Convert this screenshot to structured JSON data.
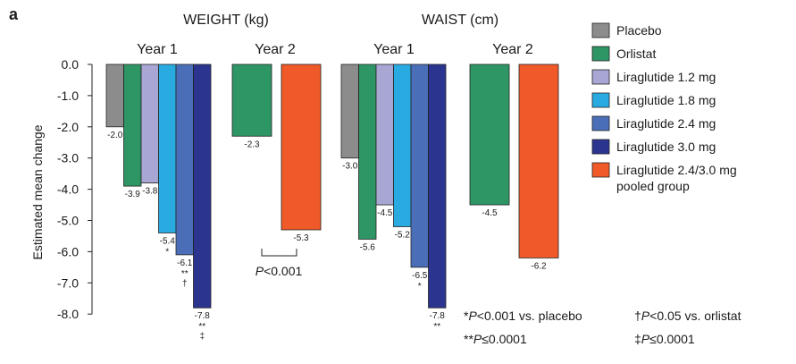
{
  "panel_label": "a",
  "chart_data": {
    "type": "bar",
    "ylabel": "Estimated mean change",
    "ylim": [
      -8.0,
      0.0
    ],
    "yticks": [
      "0.0",
      "-1.0",
      "-2.0",
      "-3.0",
      "-4.0",
      "-5.0",
      "-6.0",
      "-7.0",
      "-8.0"
    ],
    "groups": [
      {
        "title": "WEIGHT (kg)",
        "subgroups": [
          {
            "label": "Year 1",
            "bars": [
              {
                "series": "Placebo",
                "value": -2.0,
                "label": "-2.0",
                "marks": []
              },
              {
                "series": "Orlistat",
                "value": -3.9,
                "label": "-3.9",
                "marks": []
              },
              {
                "series": "Liraglutide 1.2 mg",
                "value": -3.8,
                "label": "-3.8",
                "marks": []
              },
              {
                "series": "Liraglutide 1.8 mg",
                "value": -5.4,
                "label": "-5.4",
                "marks": [
                  "*"
                ]
              },
              {
                "series": "Liraglutide 2.4 mg",
                "value": -6.1,
                "label": "-6.1",
                "marks": [
                  "**",
                  "†"
                ]
              },
              {
                "series": "Liraglutide 3.0 mg",
                "value": -7.8,
                "label": "-7.8",
                "marks": [
                  "**",
                  "‡"
                ]
              }
            ]
          },
          {
            "label": "Year 2",
            "bars": [
              {
                "series": "Orlistat",
                "value": -2.3,
                "label": "-2.3",
                "marks": []
              },
              {
                "series": "Liraglutide 2.4/3.0 mg pooled group",
                "value": -5.3,
                "label": "-5.3",
                "marks": []
              }
            ],
            "comparison": {
              "text": "P < 0.001",
              "p": "P",
              "rest": "<0.001"
            }
          }
        ]
      },
      {
        "title": "WAIST (cm)",
        "subgroups": [
          {
            "label": "Year 1",
            "bars": [
              {
                "series": "Placebo",
                "value": -3.0,
                "label": "-3.0",
                "marks": []
              },
              {
                "series": "Orlistat",
                "value": -5.6,
                "label": "-5.6",
                "marks": []
              },
              {
                "series": "Liraglutide 1.2 mg",
                "value": -4.5,
                "label": "-4.5",
                "marks": []
              },
              {
                "series": "Liraglutide 1.8 mg",
                "value": -5.2,
                "label": "-5.2",
                "marks": []
              },
              {
                "series": "Liraglutide 2.4 mg",
                "value": -6.5,
                "label": "-6.5",
                "marks": [
                  "*"
                ]
              },
              {
                "series": "Liraglutide 3.0 mg",
                "value": -7.8,
                "label": "-7.8",
                "marks": [
                  "**"
                ]
              }
            ]
          },
          {
            "label": "Year 2",
            "bars": [
              {
                "series": "Orlistat",
                "value": -4.5,
                "label": "-4.5",
                "marks": []
              },
              {
                "series": "Liraglutide 2.4/3.0 mg pooled group",
                "value": -6.2,
                "label": "-6.2",
                "marks": []
              }
            ]
          }
        ]
      }
    ],
    "legend": [
      {
        "name": "Placebo",
        "lines": [
          "Placebo"
        ],
        "color": "#8c8c8c"
      },
      {
        "name": "Orlistat",
        "lines": [
          "Orlistat"
        ],
        "color": "#2e9565"
      },
      {
        "name": "Liraglutide 1.2 mg",
        "lines": [
          "Liraglutide 1.2 mg"
        ],
        "color": "#a8a6d2"
      },
      {
        "name": "Liraglutide 1.8 mg",
        "lines": [
          "Liraglutide 1.8 mg"
        ],
        "color": "#29abe2"
      },
      {
        "name": "Liraglutide 2.4 mg",
        "lines": [
          "Liraglutide 2.4 mg"
        ],
        "color": "#4a6fb8"
      },
      {
        "name": "Liraglutide 3.0 mg",
        "lines": [
          "Liraglutide 3.0 mg"
        ],
        "color": "#2b3590"
      },
      {
        "name": "Liraglutide 2.4/3.0 mg pooled group",
        "lines": [
          "Liraglutide 2.4/3.0 mg",
          "pooled group"
        ],
        "color": "#f05a28"
      }
    ],
    "footnotes": [
      {
        "symbol": "*",
        "p": "P",
        "rest": "<0.001 vs. placebo"
      },
      {
        "symbol": "†",
        "p": "P",
        "rest": "<0.05 vs. orlistat"
      },
      {
        "symbol": "**",
        "p": "P",
        "rest": "≤0.0001"
      },
      {
        "symbol": "‡",
        "p": "P",
        "rest": "≤0.0001"
      }
    ]
  }
}
